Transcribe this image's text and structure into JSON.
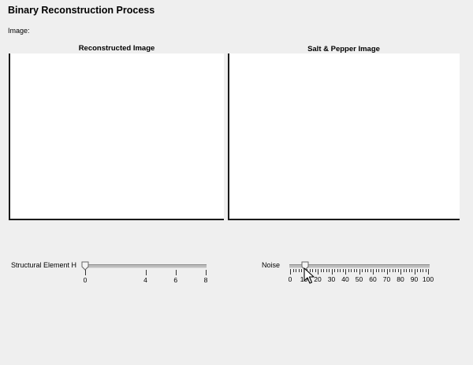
{
  "app": {
    "title": "Binary Reconstruction Process"
  },
  "image_label": "Image:",
  "panels": {
    "reconstructed": {
      "title": "Reconstructed Image"
    },
    "salt_pepper": {
      "title": "Salt & Pepper Image"
    }
  },
  "sliders": {
    "structural_element": {
      "label": "Structural Element H",
      "min": 0,
      "max": 8,
      "value": 0,
      "major_tick_labels": [
        "0",
        "4",
        "6",
        "8"
      ]
    },
    "noise": {
      "label": "Noise",
      "min": 0,
      "max": 100,
      "value": 10,
      "major_tick_labels": [
        "0",
        "10",
        "20",
        "30",
        "40",
        "50",
        "60",
        "70",
        "80",
        "90",
        "100"
      ]
    }
  },
  "icons": {
    "slider_thumb": "slider-thumb-icon",
    "cursor": "pointer-cursor-icon"
  }
}
